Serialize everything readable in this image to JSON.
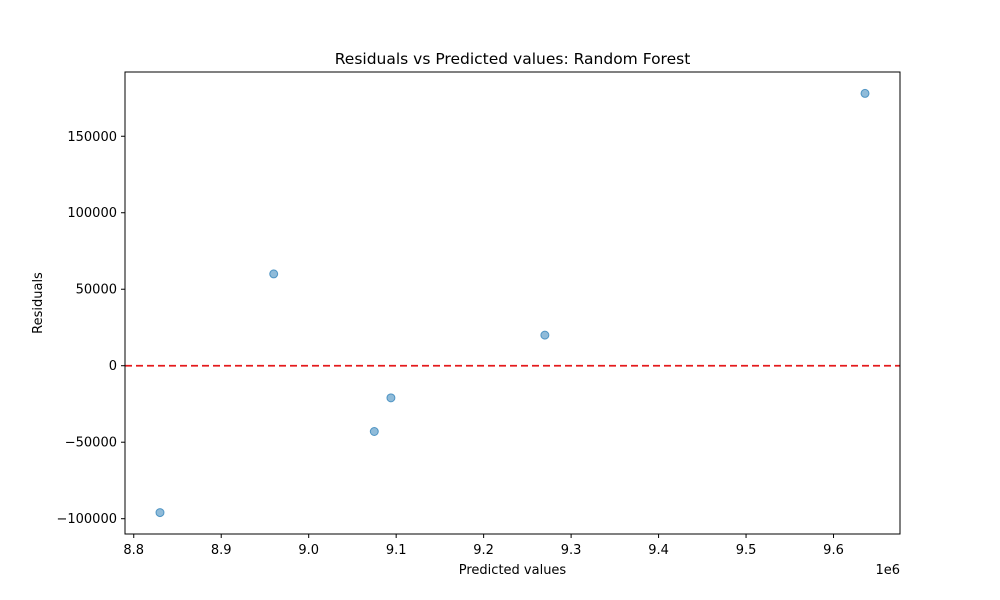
{
  "chart_data": {
    "type": "scatter",
    "title": "Residuals vs Predicted values: Random Forest",
    "xlabel": "Predicted values",
    "ylabel": "Residuals",
    "x_offset_text": "1e6",
    "x_scale_factor": 1000000,
    "xlim": [
      8.79,
      9.676
    ],
    "ylim": [
      -110000,
      192000
    ],
    "xticks": [
      8.8,
      8.9,
      9.0,
      9.1,
      9.2,
      9.3,
      9.4,
      9.5,
      9.6
    ],
    "xtick_labels": [
      "8.8",
      "8.9",
      "9.0",
      "9.1",
      "9.2",
      "9.3",
      "9.4",
      "9.5",
      "9.6"
    ],
    "yticks": [
      -100000,
      -50000,
      0,
      50000,
      100000,
      150000
    ],
    "ytick_labels": [
      "−100000",
      "−50000",
      "0",
      "50000",
      "100000",
      "150000"
    ],
    "grid": false,
    "reference_line": {
      "y": 0,
      "color": "#e41a1c",
      "style": "dashed"
    },
    "points_color": "#1f77b4",
    "points_alpha": 0.5,
    "points": [
      {
        "x": 8830000,
        "y": -96000
      },
      {
        "x": 8960000,
        "y": 60000
      },
      {
        "x": 9075000,
        "y": -43000
      },
      {
        "x": 9094000,
        "y": -21000
      },
      {
        "x": 9270000,
        "y": 20000
      },
      {
        "x": 9636000,
        "y": 178000
      }
    ]
  }
}
